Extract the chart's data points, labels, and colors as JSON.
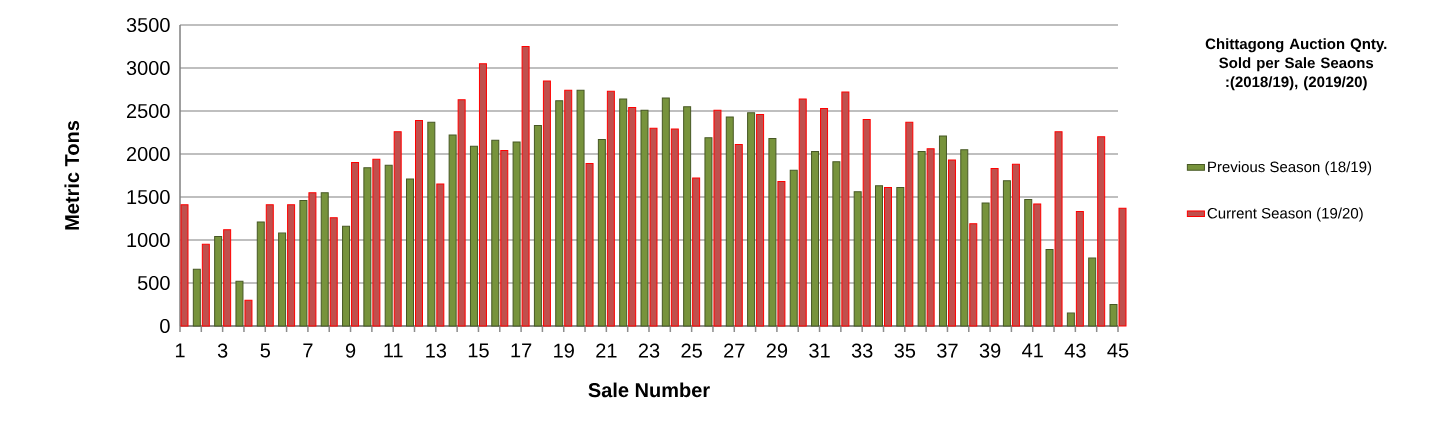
{
  "chart_data": {
    "type": "bar",
    "title": "Chittagong Auction Qnty. Sold per Sale Seaons :(2018/19), (2019/20)",
    "xlabel": "Sale Number",
    "ylabel": "Metric Tons",
    "categories": [
      "1",
      null,
      "3",
      null,
      "5",
      null,
      "7",
      null,
      "9",
      null,
      "11",
      null,
      "13",
      null,
      "15",
      null,
      "17",
      null,
      "19",
      null,
      "21",
      null,
      "23",
      null,
      "25",
      null,
      "27",
      null,
      "29",
      null,
      "31",
      null,
      "33",
      null,
      "35",
      null,
      "37",
      null,
      "39",
      null,
      "41",
      null,
      "43",
      null,
      "45"
    ],
    "series": [
      {
        "name": "Previous Season (18/19)",
        "color": "#77933c",
        "values": [
          null,
          660,
          1040,
          520,
          1210,
          1080,
          1460,
          1550,
          1160,
          1840,
          1870,
          1710,
          2370,
          2220,
          2090,
          2160,
          2140,
          2330,
          2620,
          2740,
          2170,
          2640,
          2510,
          2650,
          2550,
          2190,
          2430,
          2480,
          2180,
          1810,
          2030,
          1910,
          1560,
          1630,
          1610,
          2030,
          2210,
          2050,
          1430,
          1690,
          1470,
          890,
          150,
          790,
          250
        ]
      },
      {
        "name": "Current Season (19/20)",
        "color": "#c0504d",
        "values": [
          1410,
          950,
          1120,
          300,
          1410,
          1410,
          1550,
          1260,
          1900,
          1940,
          2260,
          2390,
          1650,
          2630,
          3050,
          2040,
          3250,
          2850,
          2740,
          1890,
          2730,
          2540,
          2300,
          2290,
          1720,
          2510,
          2110,
          2460,
          1680,
          2640,
          2530,
          2720,
          2400,
          1610,
          2370,
          2060,
          1930,
          1190,
          1830,
          1880,
          1420,
          2260,
          1330,
          2200,
          1370
        ]
      }
    ],
    "ylim": [
      0,
      3500
    ],
    "yticks": [
      0,
      500,
      1000,
      1500,
      2000,
      2500,
      3000,
      3500
    ],
    "grid": "y",
    "legend": "right"
  }
}
